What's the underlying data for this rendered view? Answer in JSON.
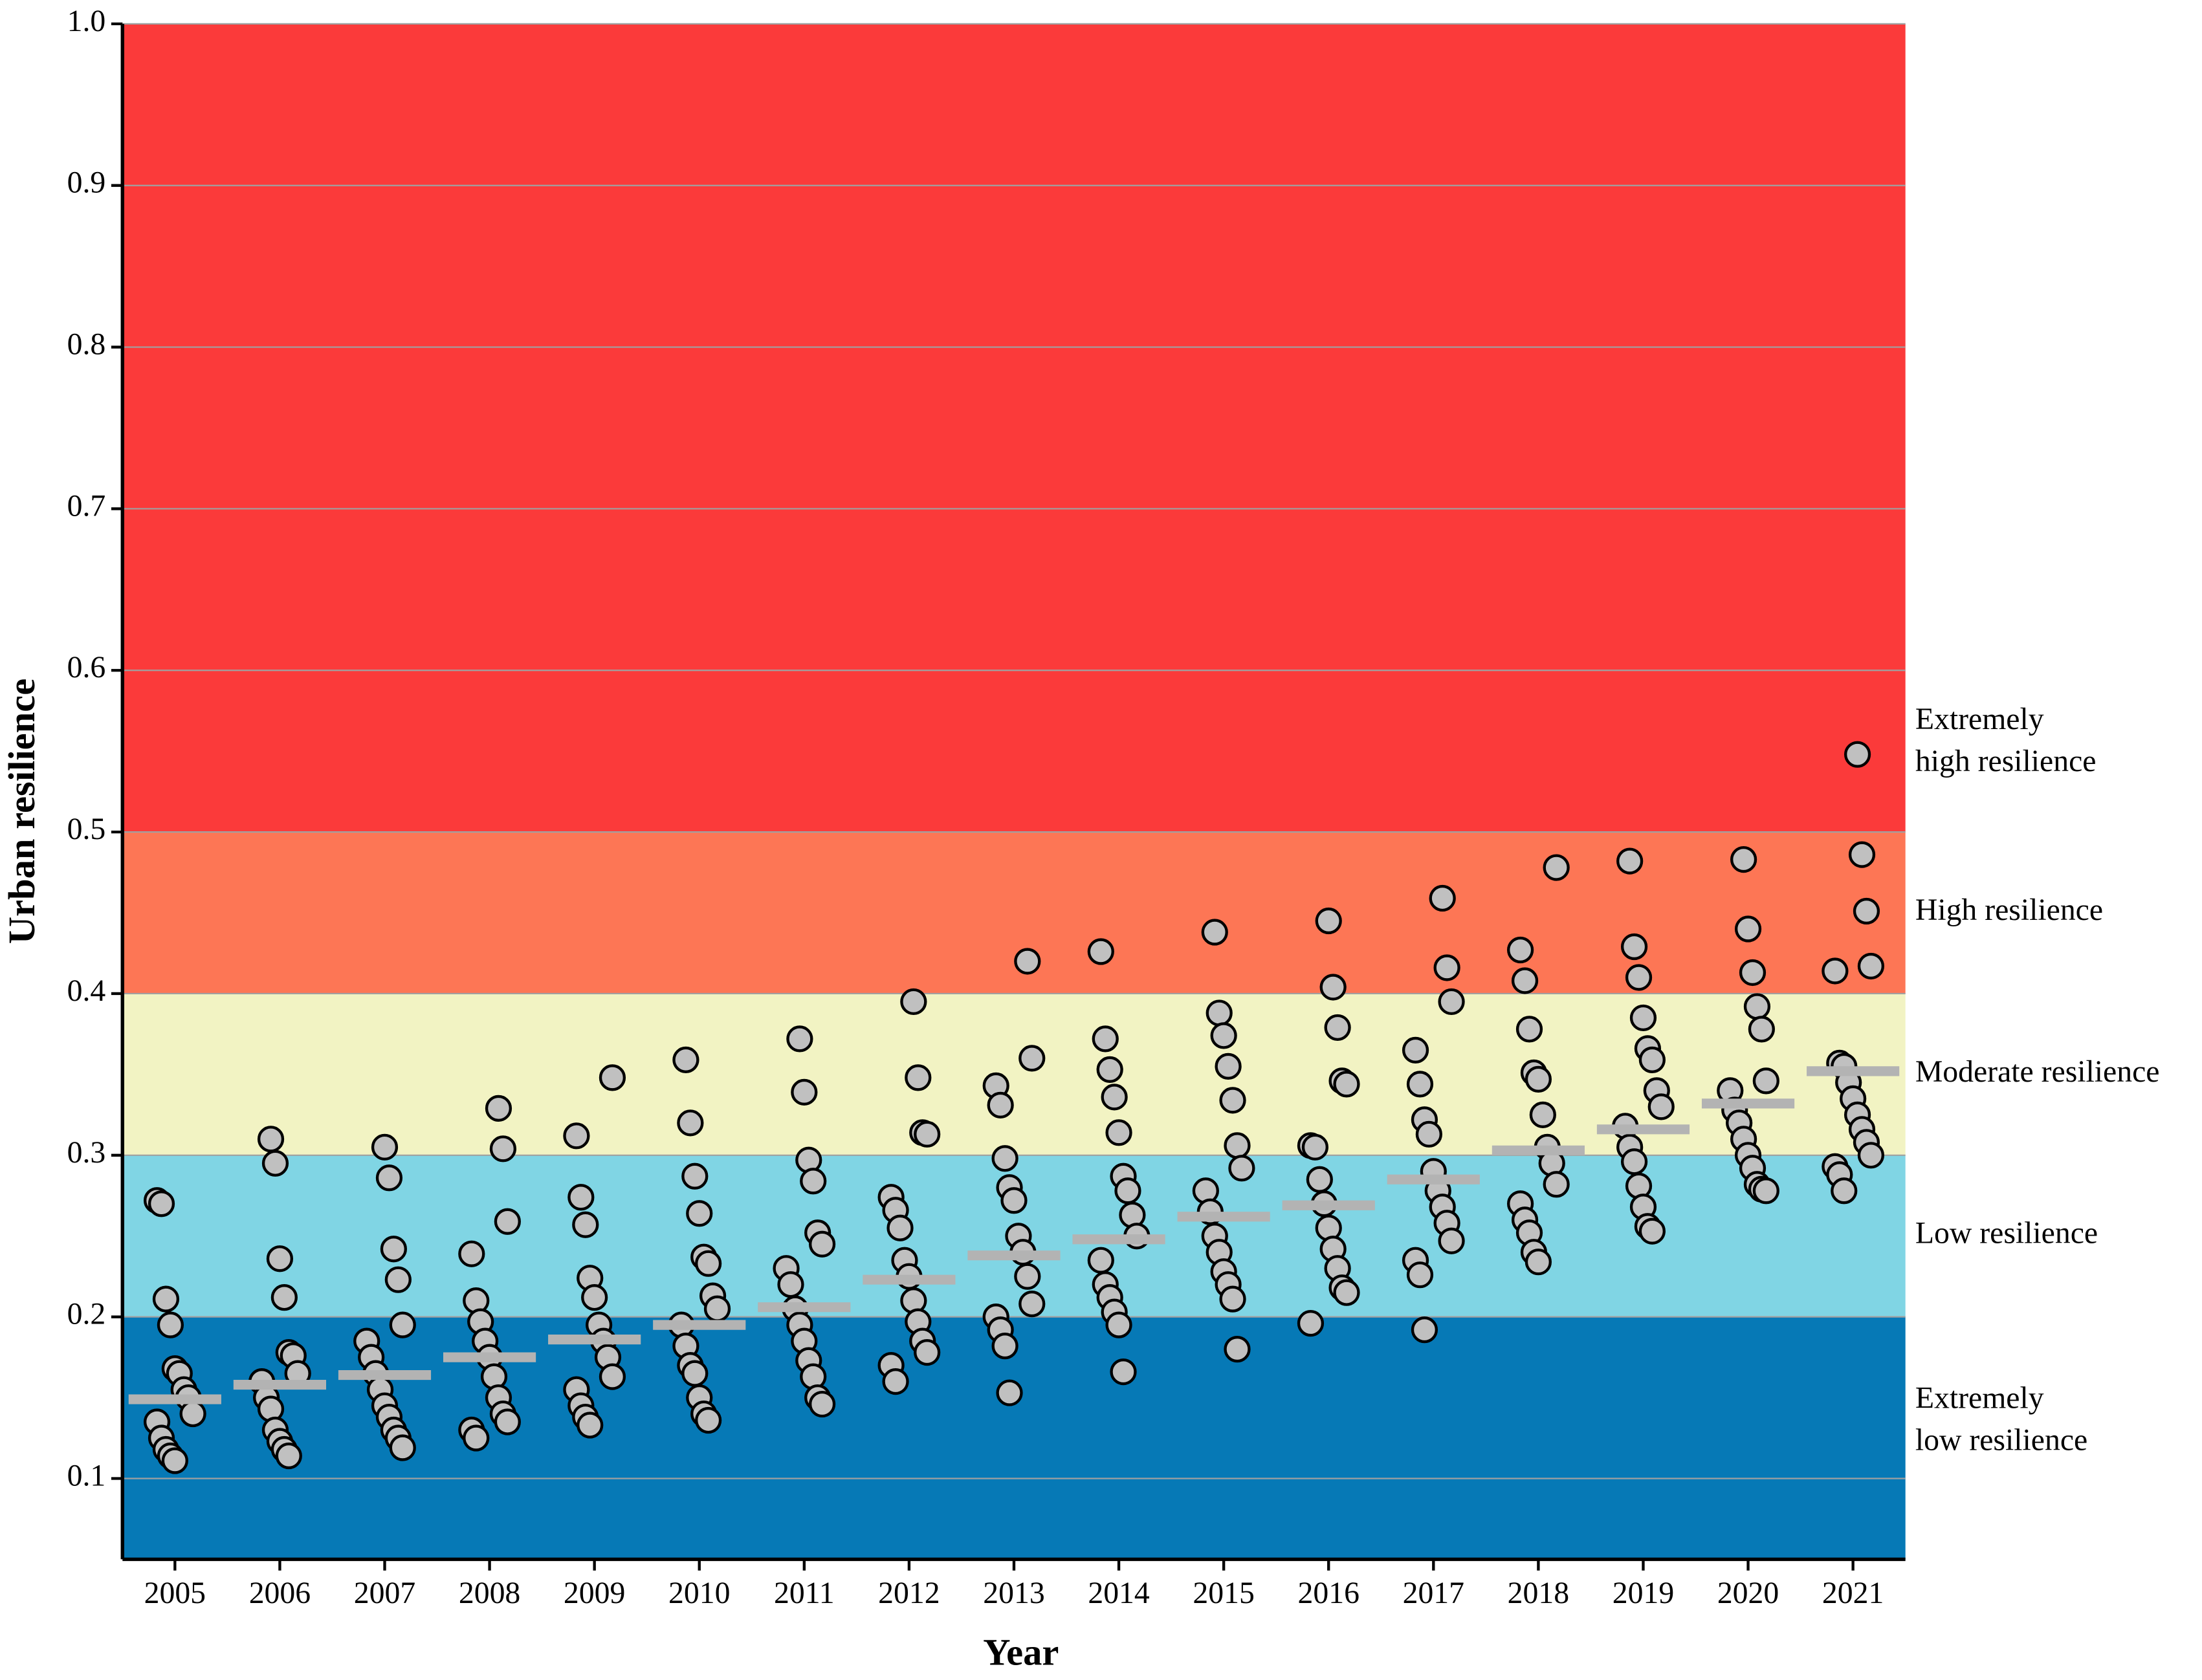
{
  "chart_data": {
    "type": "strip",
    "x_label": "Year",
    "y_label": "Urban resilience",
    "categories": [
      "2005",
      "2006",
      "2007",
      "2008",
      "2009",
      "2010",
      "2011",
      "2012",
      "2013",
      "2014",
      "2015",
      "2016",
      "2017",
      "2018",
      "2019",
      "2020",
      "2021"
    ],
    "points": [
      [
        0.272,
        0.27,
        0.211,
        0.195,
        0.168,
        0.165,
        0.155,
        0.15,
        0.14,
        0.135,
        0.125,
        0.118,
        0.114,
        0.111
      ],
      [
        0.31,
        0.295,
        0.236,
        0.212,
        0.178,
        0.176,
        0.165,
        0.16,
        0.15,
        0.143,
        0.13,
        0.123,
        0.118,
        0.114
      ],
      [
        0.305,
        0.286,
        0.242,
        0.223,
        0.195,
        0.185,
        0.175,
        0.165,
        0.155,
        0.145,
        0.138,
        0.13,
        0.125,
        0.119
      ],
      [
        0.329,
        0.304,
        0.259,
        0.239,
        0.21,
        0.197,
        0.185,
        0.175,
        0.163,
        0.15,
        0.14,
        0.135,
        0.13,
        0.125
      ],
      [
        0.348,
        0.312,
        0.274,
        0.257,
        0.224,
        0.212,
        0.195,
        0.185,
        0.175,
        0.163,
        0.155,
        0.145,
        0.138,
        0.133
      ],
      [
        0.359,
        0.32,
        0.287,
        0.264,
        0.237,
        0.233,
        0.213,
        0.205,
        0.195,
        0.182,
        0.17,
        0.165,
        0.15,
        0.14,
        0.136
      ],
      [
        0.372,
        0.339,
        0.297,
        0.284,
        0.252,
        0.245,
        0.23,
        0.22,
        0.205,
        0.195,
        0.185,
        0.173,
        0.163,
        0.15,
        0.146
      ],
      [
        0.395,
        0.348,
        0.314,
        0.313,
        0.274,
        0.266,
        0.255,
        0.235,
        0.225,
        0.21,
        0.197,
        0.185,
        0.178,
        0.17,
        0.16
      ],
      [
        0.42,
        0.36,
        0.343,
        0.331,
        0.298,
        0.28,
        0.272,
        0.25,
        0.24,
        0.225,
        0.208,
        0.2,
        0.192,
        0.182,
        0.153
      ],
      [
        0.426,
        0.372,
        0.353,
        0.336,
        0.314,
        0.287,
        0.278,
        0.263,
        0.25,
        0.235,
        0.22,
        0.212,
        0.203,
        0.195,
        0.166
      ],
      [
        0.438,
        0.388,
        0.374,
        0.355,
        0.334,
        0.306,
        0.292,
        0.278,
        0.265,
        0.25,
        0.24,
        0.228,
        0.22,
        0.211,
        0.18
      ],
      [
        0.445,
        0.404,
        0.379,
        0.346,
        0.344,
        0.306,
        0.305,
        0.285,
        0.27,
        0.255,
        0.242,
        0.23,
        0.218,
        0.215,
        0.196
      ],
      [
        0.459,
        0.416,
        0.395,
        0.365,
        0.344,
        0.322,
        0.313,
        0.29,
        0.278,
        0.268,
        0.258,
        0.247,
        0.235,
        0.226,
        0.192
      ],
      [
        0.478,
        0.427,
        0.408,
        0.378,
        0.351,
        0.347,
        0.325,
        0.305,
        0.295,
        0.282,
        0.27,
        0.26,
        0.252,
        0.24,
        0.234
      ],
      [
        0.482,
        0.429,
        0.41,
        0.385,
        0.366,
        0.359,
        0.34,
        0.33,
        0.318,
        0.305,
        0.296,
        0.281,
        0.268,
        0.256,
        0.253
      ],
      [
        0.483,
        0.44,
        0.413,
        0.392,
        0.378,
        0.346,
        0.34,
        0.328,
        0.32,
        0.31,
        0.3,
        0.292,
        0.282,
        0.279,
        0.278
      ],
      [
        0.548,
        0.486,
        0.451,
        0.417,
        0.414,
        0.357,
        0.355,
        0.345,
        0.335,
        0.325,
        0.316,
        0.308,
        0.3,
        0.293,
        0.288,
        0.278
      ]
    ],
    "means": [
      0.149,
      0.158,
      0.164,
      0.175,
      0.186,
      0.195,
      0.206,
      0.223,
      0.238,
      0.248,
      0.262,
      0.269,
      0.285,
      0.303,
      0.316,
      0.332,
      0.352
    ],
    "point_color": "#c0c0c0",
    "mean_color": "#b3b3b3",
    "bands": [
      {
        "from": 0.05,
        "to": 0.2,
        "color": "#0679b6",
        "label": [
          "Extremely",
          "low resilience"
        ]
      },
      {
        "from": 0.2,
        "to": 0.3,
        "color": "#80d5e4",
        "label": [
          "Low resilience"
        ]
      },
      {
        "from": 0.3,
        "to": 0.4,
        "color": "#f2f3c3",
        "label": [
          "Moderate resilience"
        ]
      },
      {
        "from": 0.4,
        "to": 0.5,
        "color": "#fd7655",
        "label": [
          "High resilience"
        ]
      },
      {
        "from": 0.5,
        "to": 1.0,
        "color": "#fb3a3a",
        "label": [
          "Extremely",
          "high resilience"
        ]
      }
    ],
    "ylim": [
      0.05,
      1.0
    ],
    "yticks": [
      0.1,
      0.2,
      0.3,
      0.4,
      0.5,
      0.6,
      0.7,
      0.8,
      0.9,
      {
        "value": 1,
        "label": "1.0"
      }
    ],
    "grid": true
  }
}
